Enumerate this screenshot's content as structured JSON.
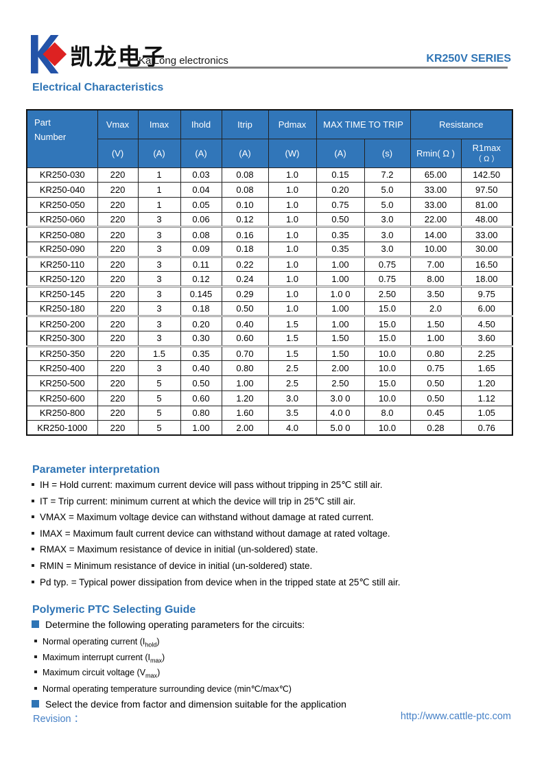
{
  "header": {
    "logo_chinese": "凯龙电子",
    "company_name": "KaiLong electronics",
    "series_title": "KR250V SERIES"
  },
  "electrical": {
    "title": "Electrical Characteristics"
  },
  "table": {
    "head": {
      "part_line1": "Part",
      "part_line2": "Number",
      "vmax": "Vmax",
      "imax": "Imax",
      "ihold": "Ihold",
      "itrip": "Itrip",
      "pdmax": "Pdmax",
      "max_time_to_trip": "MAX TIME TO TRIP",
      "resistance": "Resistance",
      "unit_v": "(V)",
      "unit_a1": "(A)",
      "unit_a2": "(A)",
      "unit_a3": "(A)",
      "unit_w": "(W)",
      "unit_a4": "(A)",
      "unit_s": "(s)",
      "rmin": "Rmin( Ω )",
      "r1max_line1": "R1max",
      "r1max_line2": "（ Ω ）"
    },
    "rows": [
      [
        "KR250-030",
        "220",
        "1",
        "0.03",
        "0.08",
        "1.0",
        "0.15",
        "7.2",
        "65.00",
        "142.50"
      ],
      [
        "KR250-040",
        "220",
        "1",
        "0.04",
        "0.08",
        "1.0",
        "0.20",
        "5.0",
        "33.00",
        "97.50"
      ],
      [
        "KR250-050",
        "220",
        "1",
        "0.05",
        "0.10",
        "1.0",
        "0.75",
        "5.0",
        "33.00",
        "81.00"
      ],
      [
        "KR250-060",
        "220",
        "3",
        "0.06",
        "0.12",
        "1.0",
        "0.50",
        "3.0",
        "22.00",
        "48.00"
      ],
      [
        "KR250-080",
        "220",
        "3",
        "0.08",
        "0.16",
        "1.0",
        "0.35",
        "3.0",
        "14.00",
        "33.00"
      ],
      [
        "KR250-090",
        "220",
        "3",
        "0.09",
        "0.18",
        "1.0",
        "0.35",
        "3.0",
        "10.00",
        "30.00"
      ],
      [
        "KR250-110",
        "220",
        "3",
        "0.11",
        "0.22",
        "1.0",
        "1.00",
        "0.75",
        "7.00",
        "16.50"
      ],
      [
        "KR250-120",
        "220",
        "3",
        "0.12",
        "0.24",
        "1.0",
        "1.00",
        "0.75",
        "8.00",
        "18.00"
      ],
      [
        "KR250-145",
        "220",
        "3",
        "0.145",
        "0.29",
        "1.0",
        "1.0 0",
        "2.50",
        "3.50",
        "9.75"
      ],
      [
        "KR250-180",
        "220",
        "3",
        "0.18",
        "0.50",
        "1.0",
        "1.00",
        "15.0",
        "2.0",
        "6.00"
      ],
      [
        "KR250-200",
        "220",
        "3",
        "0.20",
        "0.40",
        "1.5",
        "1.00",
        "15.0",
        "1.50",
        "4.50"
      ],
      [
        "KR250-300",
        "220",
        "3",
        "0.30",
        "0.60",
        "1.5",
        "1.50",
        "15.0",
        "1.00",
        "3.60"
      ],
      [
        "KR250-350",
        "220",
        "1.5",
        "0.35",
        "0.70",
        "1.5",
        "1.50",
        "10.0",
        "0.80",
        "2.25"
      ],
      [
        "KR250-400",
        "220",
        "3",
        "0.40",
        "0.80",
        "2.5",
        "2.00",
        "10.0",
        "0.75",
        "1.65"
      ],
      [
        "KR250-500",
        "220",
        "5",
        "0.50",
        "1.00",
        "2.5",
        "2.50",
        "15.0",
        "0.50",
        "1.20"
      ],
      [
        "KR250-600",
        "220",
        "5",
        "0.60",
        "1.20",
        "3.0",
        "3.0 0",
        "10.0",
        "0.50",
        "1.12"
      ],
      [
        "KR250-800",
        "220",
        "5",
        "0.80",
        "1.60",
        "3.5",
        "4.0 0",
        "8.0",
        "0.45",
        "1.05"
      ],
      [
        "KR250-1000",
        "220",
        "5",
        "1.00",
        "2.00",
        "4.0",
        "5.0 0",
        "10.0",
        "0.28",
        "0.76"
      ]
    ]
  },
  "parameter": {
    "title": "Parameter interpretation",
    "bullets": [
      "IH = Hold current: maximum current device will pass without tripping in 25℃  still air.",
      "IT = Trip current: minimum current at which the device will trip in 25℃  still air.",
      "VMAX = Maximum voltage device can withstand without damage at rated current.",
      "IMAX = Maximum fault current device can withstand without damage at rated voltage.",
      "RMAX = Maximum resistance of device in initial (un-soldered) state.",
      "RMIN = Minimum resistance of device in initial (un-soldered) state.",
      "Pd typ. = Typical power dissipation from device when in the tripped state at 25℃  still air."
    ]
  },
  "guide": {
    "title": "Polymeric PTC Selecting Guide",
    "items": [
      {
        "bullet": "square",
        "pre": "Determine the following operating parameters for the circuits:",
        "sub": "",
        "post": ""
      },
      {
        "bullet": "dot",
        "pre": "Normal operating current (I",
        "sub": "hold",
        "post": ")"
      },
      {
        "bullet": "dot",
        "pre": "Maximum interrupt current (I",
        "sub": "max",
        "post": ")"
      },
      {
        "bullet": "dot",
        "pre": "Maximum circuit voltage (V",
        "sub": "max",
        "post": ")"
      },
      {
        "bullet": "dot",
        "pre": "Normal operating temperature surrounding device (min℃/max℃)",
        "sub": "",
        "post": ""
      },
      {
        "bullet": "square",
        "pre": "Select the device from factor and dimension suitable for the application",
        "sub": "",
        "post": ""
      }
    ]
  },
  "footer": {
    "revision_label": "Revision ：",
    "url": "http://www.cattle-ptc.com"
  },
  "colors": {
    "accent_blue": "#2E74B5",
    "table_header_blue": "#3176B9",
    "logo_blue": "#2353A8",
    "logo_red": "#DD2222",
    "rule_gray": "#808080",
    "footer_blue": "#4580C6"
  }
}
